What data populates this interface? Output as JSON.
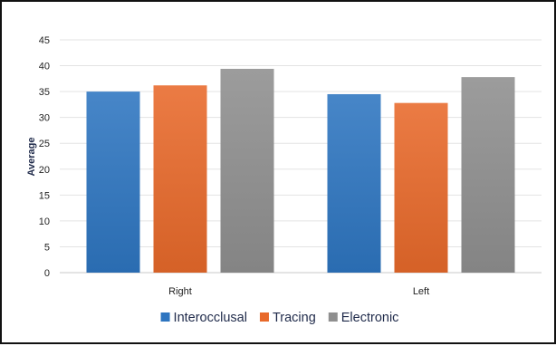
{
  "chart_data": {
    "type": "bar",
    "title": "",
    "xlabel": "",
    "ylabel": "Average",
    "ylim": [
      0,
      45
    ],
    "yticks": [
      0,
      5,
      10,
      15,
      20,
      25,
      30,
      35,
      40,
      45
    ],
    "grid": true,
    "legend_position": "bottom",
    "categories": [
      "Right",
      "Left"
    ],
    "series": [
      {
        "name": "Interocclusal",
        "color": "#2e75c0",
        "values": [
          35.0,
          34.5
        ]
      },
      {
        "name": "Tracing",
        "color": "#e8692a",
        "values": [
          36.2,
          32.8
        ]
      },
      {
        "name": "Electronic",
        "color": "#8f8f8f",
        "values": [
          39.4,
          37.8
        ]
      }
    ]
  }
}
